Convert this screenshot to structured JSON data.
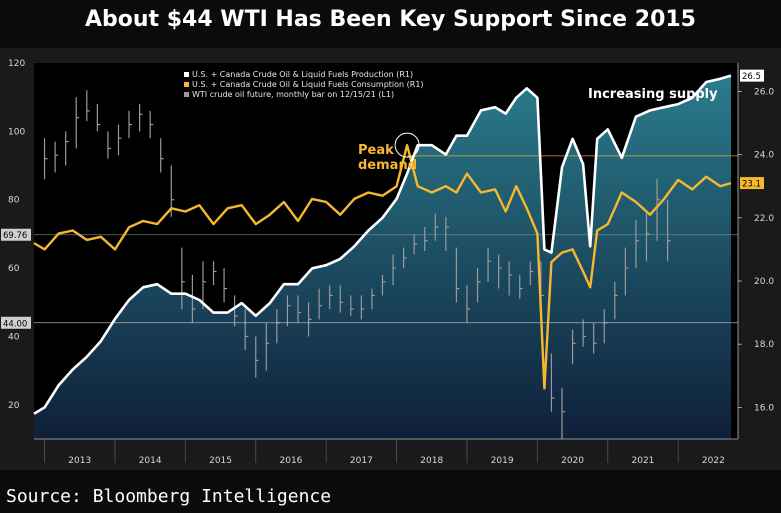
{
  "title": "About $44 WTI Has Been Key Support Since 2015",
  "source": "Source: Bloomberg Intelligence",
  "colors": {
    "production": "#ffffff",
    "consumption": "#f5b82e",
    "wti": "#9a9a9a",
    "area_top": "#2a7c8c",
    "area_bottom": "#0f1f3a",
    "background": "#000000",
    "frame": "#1c1c1c"
  },
  "chart_data": {
    "type": "line",
    "x_ticks": [
      "2013",
      "2014",
      "2015",
      "2016",
      "2017",
      "2018",
      "2019",
      "2020",
      "2021",
      "2022"
    ],
    "left_axis": {
      "ticks": [
        20,
        40,
        60,
        80,
        100,
        120
      ],
      "ylim": [
        10,
        120
      ]
    },
    "right_axis": {
      "ticks": [
        "16.0",
        "18.0",
        "20.0",
        "22.0",
        "24.0",
        "26.0"
      ],
      "ylim": [
        15,
        26.9
      ]
    },
    "series": [
      {
        "name": "U.S. + Canada Crude Oil & Liquid Fuels Production (R1)",
        "axis": "right",
        "last_label": "26.5",
        "x": [
          2012.85,
          2013.0,
          2013.2,
          2013.4,
          2013.6,
          2013.8,
          2014.0,
          2014.2,
          2014.4,
          2014.6,
          2014.8,
          2015.0,
          2015.2,
          2015.4,
          2015.6,
          2015.8,
          2016.0,
          2016.2,
          2016.4,
          2016.6,
          2016.8,
          2017.0,
          2017.2,
          2017.4,
          2017.6,
          2017.8,
          2018.0,
          2018.15,
          2018.3,
          2018.5,
          2018.7,
          2018.85,
          2019.0,
          2019.2,
          2019.4,
          2019.55,
          2019.7,
          2019.85,
          2020.0,
          2020.1,
          2020.2,
          2020.35,
          2020.5,
          2020.65,
          2020.75,
          2020.85,
          2021.0,
          2021.2,
          2021.4,
          2021.6,
          2021.8,
          2022.0,
          2022.2,
          2022.4,
          2022.6,
          2022.75
        ],
        "y": [
          15.8,
          16.0,
          16.7,
          17.2,
          17.6,
          18.1,
          18.8,
          19.4,
          19.8,
          19.9,
          19.6,
          19.6,
          19.4,
          19.0,
          19.0,
          19.3,
          18.9,
          19.3,
          19.9,
          19.9,
          20.4,
          20.5,
          20.7,
          21.1,
          21.6,
          22.0,
          22.6,
          23.4,
          24.3,
          24.3,
          24.0,
          24.6,
          24.6,
          25.4,
          25.5,
          25.3,
          25.8,
          26.1,
          25.8,
          21.0,
          20.9,
          23.6,
          24.5,
          23.7,
          21.1,
          24.5,
          24.8,
          23.9,
          25.2,
          25.4,
          25.5,
          25.6,
          25.8,
          26.3,
          26.4,
          26.5
        ]
      },
      {
        "name": "U.S. + Canada Crude Oil & Liquid Fuels Consumption (R1)",
        "axis": "right",
        "last_label": "23.1",
        "x": [
          2012.85,
          2013.0,
          2013.2,
          2013.4,
          2013.6,
          2013.8,
          2014.0,
          2014.2,
          2014.4,
          2014.6,
          2014.8,
          2015.0,
          2015.2,
          2015.4,
          2015.6,
          2015.8,
          2016.0,
          2016.2,
          2016.4,
          2016.6,
          2016.8,
          2017.0,
          2017.2,
          2017.4,
          2017.6,
          2017.8,
          2018.0,
          2018.15,
          2018.3,
          2018.5,
          2018.7,
          2018.85,
          2019.0,
          2019.2,
          2019.4,
          2019.55,
          2019.7,
          2019.85,
          2020.0,
          2020.1,
          2020.2,
          2020.35,
          2020.5,
          2020.65,
          2020.75,
          2020.85,
          2021.0,
          2021.2,
          2021.4,
          2021.6,
          2021.8,
          2022.0,
          2022.2,
          2022.4,
          2022.6,
          2022.75
        ],
        "y": [
          21.2,
          21.0,
          21.5,
          21.6,
          21.3,
          21.4,
          21.0,
          21.7,
          21.9,
          21.8,
          22.3,
          22.2,
          22.4,
          21.8,
          22.3,
          22.4,
          21.8,
          22.1,
          22.5,
          21.9,
          22.6,
          22.5,
          22.1,
          22.6,
          22.8,
          22.7,
          23.0,
          24.3,
          23.0,
          22.8,
          23.0,
          22.8,
          23.4,
          22.8,
          22.9,
          22.2,
          23.0,
          22.3,
          21.5,
          16.6,
          20.6,
          20.9,
          21.0,
          20.3,
          19.8,
          21.6,
          21.8,
          22.8,
          22.5,
          22.1,
          22.6,
          23.2,
          22.9,
          23.3,
          23.0,
          23.1
        ]
      },
      {
        "name": "WTI crude oil future, monthly bar on 12/15/21 (L1)",
        "axis": "left",
        "bar_type": "ohlc",
        "x": [
          2013.0,
          2013.15,
          2013.3,
          2013.45,
          2013.6,
          2013.75,
          2013.9,
          2014.05,
          2014.2,
          2014.35,
          2014.5,
          2014.65,
          2014.8,
          2014.95,
          2015.1,
          2015.25,
          2015.4,
          2015.55,
          2015.7,
          2015.85,
          2016.0,
          2016.15,
          2016.3,
          2016.45,
          2016.6,
          2016.75,
          2016.9,
          2017.05,
          2017.2,
          2017.35,
          2017.5,
          2017.65,
          2017.8,
          2017.95,
          2018.1,
          2018.25,
          2018.4,
          2018.55,
          2018.7,
          2018.85,
          2019.0,
          2019.15,
          2019.3,
          2019.45,
          2019.6,
          2019.75,
          2019.9,
          2020.05,
          2020.2,
          2020.35,
          2020.5,
          2020.65,
          2020.8,
          2020.95,
          2021.1,
          2021.25,
          2021.4,
          2021.55,
          2021.7,
          2021.85
        ],
        "low": [
          86,
          88,
          90,
          95,
          103,
          100,
          92,
          93,
          98,
          100,
          98,
          88,
          75,
          48,
          44,
          48,
          55,
          50,
          43,
          36,
          28,
          30,
          38,
          43,
          44,
          40,
          45,
          48,
          47,
          46,
          45,
          48,
          52,
          55,
          60,
          64,
          65,
          68,
          65,
          50,
          44,
          50,
          56,
          54,
          52,
          51,
          55,
          48,
          18,
          10,
          32,
          37,
          35,
          38,
          45,
          52,
          60,
          62,
          68,
          62
        ],
        "high": [
          98,
          97,
          100,
          110,
          112,
          108,
          100,
          102,
          106,
          108,
          106,
          98,
          90,
          66,
          58,
          62,
          62,
          60,
          52,
          48,
          40,
          44,
          48,
          52,
          52,
          50,
          54,
          55,
          55,
          52,
          52,
          54,
          58,
          64,
          66,
          70,
          72,
          76,
          75,
          66,
          55,
          60,
          66,
          64,
          62,
          58,
          62,
          62,
          35,
          25,
          42,
          45,
          44,
          48,
          56,
          66,
          74,
          76,
          86,
          80
        ],
        "close": [
          92,
          93,
          97,
          104,
          106,
          102,
          95,
          98,
          102,
          105,
          102,
          92,
          80,
          56,
          48,
          56,
          59,
          54,
          46,
          40,
          33,
          38,
          44,
          49,
          47,
          45,
          49,
          52,
          50,
          48,
          48,
          52,
          56,
          60,
          63,
          67,
          68,
          72,
          72,
          54,
          48,
          56,
          62,
          60,
          58,
          54,
          59,
          52,
          22,
          18,
          38,
          40,
          38,
          44,
          52,
          60,
          68,
          70,
          80,
          68
        ]
      }
    ],
    "hlines": [
      {
        "label": "69.76",
        "axis": "left",
        "value": 69.76,
        "color": "#888888"
      },
      {
        "label": "44.00",
        "axis": "left",
        "value": 44.0,
        "color": "#c8c8c8"
      },
      {
        "label": "",
        "axis": "right",
        "value": 23.96,
        "color": "#f5b82e"
      }
    ],
    "annotations": [
      {
        "text": "Peak",
        "color": "#f5b82e",
        "x": 2018.15,
        "y": 24.3
      },
      {
        "text": "demand",
        "color": "#f5b82e",
        "x": 2018.15,
        "y": 24.3
      },
      {
        "text": "Increasing supply",
        "color": "#ffffff"
      }
    ],
    "grid": false,
    "legend": "top-left"
  }
}
